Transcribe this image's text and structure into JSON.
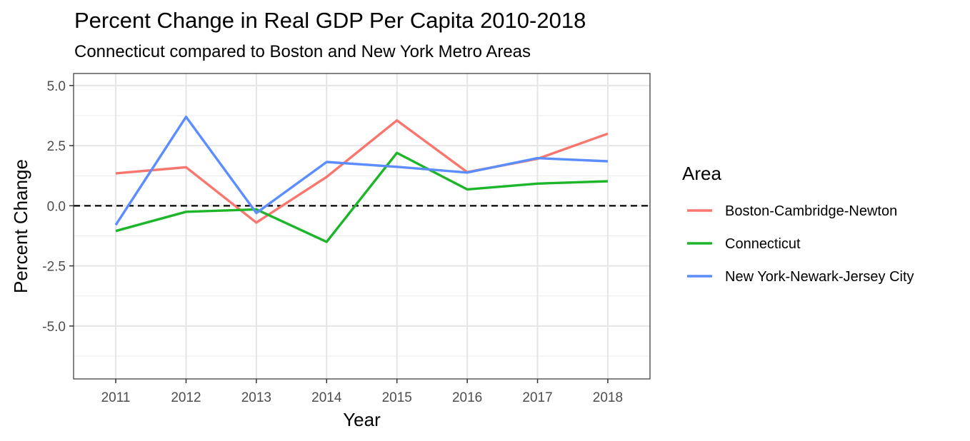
{
  "chart_data": {
    "type": "line",
    "title": "Percent Change in Real GDP Per Capita 2010-2018",
    "subtitle": "Connecticut compared to Boston and New York Metro Areas",
    "xlabel": "Year",
    "ylabel": "Percent Change",
    "x": [
      2011,
      2012,
      2013,
      2014,
      2015,
      2016,
      2017,
      2018
    ],
    "x_tick_labels": [
      "2011",
      "2012",
      "2013",
      "2014",
      "2015",
      "2016",
      "2017",
      "2018"
    ],
    "y_ticks": [
      5.0,
      2.5,
      0.0,
      -2.5,
      -5.0
    ],
    "y_tick_labels": [
      "5.0",
      "2.5",
      "0.0",
      "-2.5",
      "-5.0"
    ],
    "ylim": [
      -7.2,
      5.5
    ],
    "xlim": [
      2010.4,
      2018.6
    ],
    "grid": true,
    "reference_line": {
      "y": 0,
      "style": "dashed"
    },
    "legend": {
      "title": "Area",
      "position": "right"
    },
    "series": [
      {
        "name": "Boston-Cambridge-Newton",
        "color": "#F8766D",
        "values": [
          1.35,
          1.6,
          -0.7,
          1.2,
          3.55,
          1.4,
          1.95,
          3.0
        ]
      },
      {
        "name": "Connecticut",
        "color": "#1DB52A",
        "values": [
          -1.05,
          -0.25,
          -0.15,
          -1.5,
          2.2,
          0.68,
          0.92,
          1.02
        ]
      },
      {
        "name": "New York-Newark-Jersey City",
        "color": "#5C8DFF",
        "values": [
          -0.8,
          3.7,
          -0.3,
          1.82,
          1.62,
          1.38,
          1.98,
          1.85
        ]
      }
    ]
  }
}
